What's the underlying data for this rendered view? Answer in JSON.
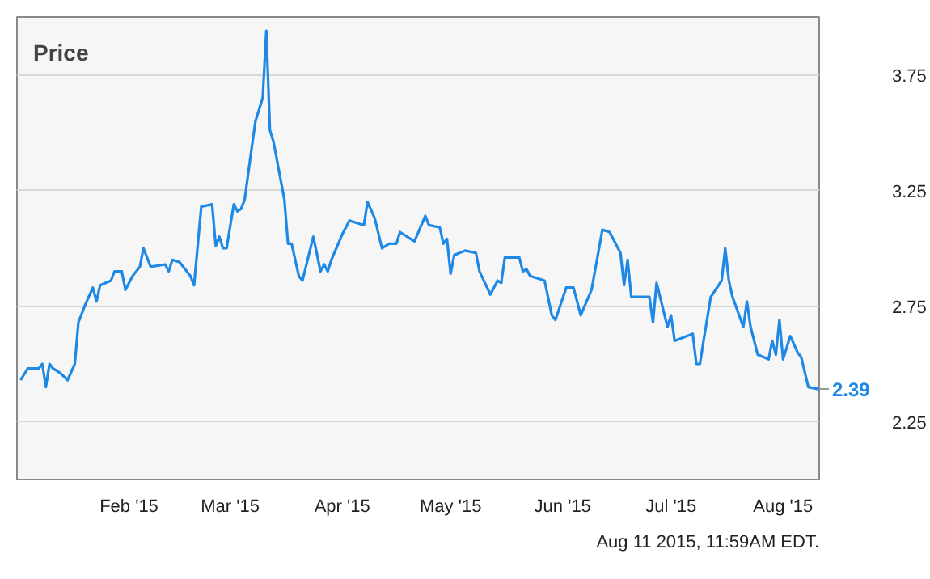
{
  "chart_data": {
    "type": "line",
    "title": "Price",
    "x": [
      "2015-01-02",
      "2015-01-04",
      "2015-01-07",
      "2015-01-08",
      "2015-01-09",
      "2015-01-10",
      "2015-01-11",
      "2015-01-13",
      "2015-01-15",
      "2015-01-17",
      "2015-01-18",
      "2015-01-20",
      "2015-01-22",
      "2015-01-23",
      "2015-01-24",
      "2015-01-27",
      "2015-01-28",
      "2015-01-30",
      "2015-01-31",
      "2015-02-02",
      "2015-02-04",
      "2015-02-05",
      "2015-02-07",
      "2015-02-11",
      "2015-02-12",
      "2015-02-13",
      "2015-02-15",
      "2015-02-18",
      "2015-02-19",
      "2015-02-21",
      "2015-02-24",
      "2015-02-25",
      "2015-02-26",
      "2015-02-27",
      "2015-02-28",
      "2015-03-02",
      "2015-03-03",
      "2015-03-04",
      "2015-03-05",
      "2015-03-07",
      "2015-03-08",
      "2015-03-10",
      "2015-03-11",
      "2015-03-12",
      "2015-03-13",
      "2015-03-16",
      "2015-03-17",
      "2015-03-18",
      "2015-03-20",
      "2015-03-21",
      "2015-03-24",
      "2015-03-26",
      "2015-03-27",
      "2015-03-28",
      "2015-03-29",
      "2015-04-01",
      "2015-04-03",
      "2015-04-07",
      "2015-04-08",
      "2015-04-10",
      "2015-04-12",
      "2015-04-14",
      "2015-04-16",
      "2015-04-17",
      "2015-04-21",
      "2015-04-24",
      "2015-04-25",
      "2015-04-28",
      "2015-04-29",
      "2015-04-30",
      "2015-05-01",
      "2015-05-02",
      "2015-05-05",
      "2015-05-08",
      "2015-05-09",
      "2015-05-12",
      "2015-05-14",
      "2015-05-15",
      "2015-05-16",
      "2015-05-20",
      "2015-05-21",
      "2015-05-22",
      "2015-05-23",
      "2015-05-27",
      "2015-05-29",
      "2015-05-30",
      "2015-06-02",
      "2015-06-04",
      "2015-06-06",
      "2015-06-09",
      "2015-06-12",
      "2015-06-14",
      "2015-06-17",
      "2015-06-18",
      "2015-06-19",
      "2015-06-20",
      "2015-06-24",
      "2015-06-25",
      "2015-06-26",
      "2015-06-27",
      "2015-06-30",
      "2015-07-01",
      "2015-07-02",
      "2015-07-07",
      "2015-07-08",
      "2015-07-09",
      "2015-07-10",
      "2015-07-12",
      "2015-07-15",
      "2015-07-16",
      "2015-07-17",
      "2015-07-18",
      "2015-07-21",
      "2015-07-22",
      "2015-07-23",
      "2015-07-25",
      "2015-07-28",
      "2015-07-29",
      "2015-07-30",
      "2015-07-31",
      "2015-08-01",
      "2015-08-03",
      "2015-08-05",
      "2015-08-06",
      "2015-08-08",
      "2015-08-11"
    ],
    "series": [
      {
        "color": "#1e88e5",
        "values": [
          2.43,
          2.48,
          2.48,
          2.5,
          2.4,
          2.5,
          2.48,
          2.46,
          2.43,
          2.5,
          2.68,
          2.76,
          2.83,
          2.77,
          2.84,
          2.86,
          2.9,
          2.9,
          2.82,
          2.88,
          2.92,
          3.0,
          2.92,
          2.93,
          2.9,
          2.95,
          2.94,
          2.88,
          2.84,
          3.18,
          3.19,
          3.01,
          3.05,
          3.0,
          3.0,
          3.19,
          3.16,
          3.17,
          3.21,
          3.44,
          3.55,
          3.65,
          3.94,
          3.51,
          3.46,
          3.21,
          3.02,
          3.02,
          2.88,
          2.86,
          3.05,
          2.9,
          2.93,
          2.9,
          2.95,
          3.06,
          3.12,
          3.1,
          3.2,
          3.13,
          3.0,
          3.02,
          3.02,
          3.07,
          3.03,
          3.14,
          3.1,
          3.09,
          3.02,
          3.04,
          2.89,
          2.97,
          2.99,
          2.98,
          2.9,
          2.8,
          2.86,
          2.85,
          2.96,
          2.96,
          2.9,
          2.91,
          2.88,
          2.86,
          2.71,
          2.69,
          2.83,
          2.83,
          2.71,
          2.82,
          3.08,
          3.07,
          2.98,
          2.84,
          2.95,
          2.79,
          2.79,
          2.79,
          2.68,
          2.85,
          2.66,
          2.71,
          2.6,
          2.63,
          2.5,
          2.5,
          2.6,
          2.79,
          2.86,
          3.0,
          2.86,
          2.79,
          2.66,
          2.77,
          2.66,
          2.54,
          2.52,
          2.6,
          2.54,
          2.69,
          2.52,
          2.62,
          2.55,
          2.53,
          2.4,
          2.39
        ]
      }
    ],
    "xlim": [
      "2015-01-01",
      "2015-08-11"
    ],
    "xticks": [
      {
        "value": "2015-02-01",
        "label": "Feb '15"
      },
      {
        "value": "2015-03-01",
        "label": "Mar '15"
      },
      {
        "value": "2015-04-01",
        "label": "Apr '15"
      },
      {
        "value": "2015-05-01",
        "label": "May '15"
      },
      {
        "value": "2015-06-01",
        "label": "Jun '15"
      },
      {
        "value": "2015-07-01",
        "label": "Jul '15"
      },
      {
        "value": "2015-08-01",
        "label": "Aug '15"
      }
    ],
    "ylim": [
      2.0,
      4.0
    ],
    "yticks": [
      2.25,
      2.75,
      3.25,
      3.75
    ],
    "grid": true,
    "annotations": [
      {
        "text": "2.39",
        "x": "2015-08-11",
        "y": 2.39
      },
      "Aug 11 2015, 11:59AM EDT."
    ]
  }
}
